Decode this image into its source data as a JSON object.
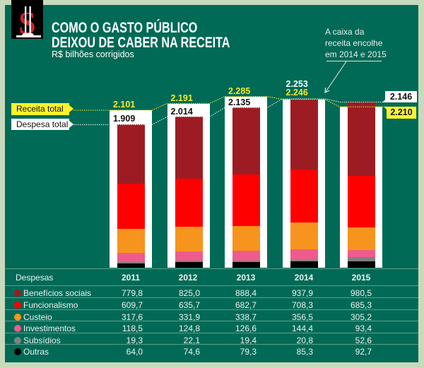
{
  "header": {
    "title_line1": "COMO O GASTO PÚBLICO",
    "title_line2": "DEIXOU DE CABER NA RECEITA",
    "subtitle": "R$ bilhões corrigidos",
    "logo_icon": "dollar-sign-icon"
  },
  "annotation": {
    "line1": "A caixa da",
    "line2": "receita encolhe",
    "line3": "em 2014 e 2015",
    "arrow_icon": "arrow-down-left-icon"
  },
  "legend": {
    "receita_label": "Receita total",
    "despesa_label": "Despesa total"
  },
  "colors": {
    "background": "#c9d9bb",
    "panel": "#006a56",
    "receita_text": "#f2ea2f",
    "receita_box": "#fff22d",
    "despesa_box": "#ffffff",
    "table_divider": "#5c9f88"
  },
  "chart_data": {
    "type": "bar",
    "stacked": true,
    "title": "COMO O GASTO PÚBLICO DEIXOU DE CABER NA RECEITA",
    "subtitle": "R$ bilhões corrigidos",
    "xlabel": "",
    "ylabel": "R$ bilhões",
    "grid": false,
    "legend_position": "left",
    "categories": [
      "2011",
      "2012",
      "2013",
      "2014",
      "2015"
    ],
    "series": [
      {
        "key": "beneficios-sociais",
        "name": "Benefícios sociais",
        "color": "#9d1c23",
        "values": [
          779.8,
          825.0,
          888.4,
          937.9,
          980.5
        ]
      },
      {
        "key": "funcionalismo",
        "name": "Funcionalismo",
        "color": "#ff0000",
        "values": [
          609.7,
          635.7,
          682.7,
          708.3,
          685.3
        ]
      },
      {
        "key": "custeio",
        "name": "Custeio",
        "color": "#f7941d",
        "values": [
          317.6,
          331.9,
          338.7,
          356.5,
          305.2
        ]
      },
      {
        "key": "investimentos",
        "name": "Investimentos",
        "color": "#ef5b8c",
        "values": [
          118.5,
          124.8,
          126.6,
          144.4,
          93.4
        ]
      },
      {
        "key": "subsidios",
        "name": "Subsídios",
        "color": "#808080",
        "values": [
          19.3,
          22.1,
          19.4,
          20.8,
          52.6
        ]
      },
      {
        "key": "outras",
        "name": "Outras",
        "color": "#000000",
        "values": [
          64.0,
          74.6,
          79.3,
          85.3,
          92.7
        ]
      }
    ],
    "receita_total": {
      "name": "Receita total",
      "values": [
        2101,
        2191,
        2285,
        2246,
        2146
      ],
      "labels": [
        "2.101",
        "2.191",
        "2.285",
        "2.246"
      ]
    },
    "despesa_total": {
      "name": "Despesa total",
      "values": [
        1909,
        2014,
        2135,
        2253,
        2210
      ],
      "labels": [
        "1.909",
        "2.014",
        "2.135",
        "2.253"
      ]
    },
    "end_labels": {
      "white_box": "2.146",
      "yellow_box": "2.210"
    },
    "annotation": "A caixa da receita encolhe em 2014 e 2015"
  },
  "table": {
    "header": "Despesas",
    "years": [
      "2011",
      "2012",
      "2013",
      "2014",
      "2015"
    ],
    "rows": [
      {
        "label": "Benefícios sociais",
        "color": "#9d1c23",
        "values": [
          "779,8",
          "825,0",
          "888,4",
          "937,9",
          "980,5"
        ]
      },
      {
        "label": "Funcionalismo",
        "color": "#ff0000",
        "values": [
          "609,7",
          "635,7",
          "682,7",
          "708,3",
          "685,3"
        ]
      },
      {
        "label": "Custeio",
        "color": "#f7941d",
        "values": [
          "317,6",
          "331,9",
          "338,7",
          "356,5",
          "305,2"
        ]
      },
      {
        "label": "Investimentos",
        "color": "#ef5b8c",
        "values": [
          "118,5",
          "124,8",
          "126,6",
          "144,4",
          "93,4"
        ]
      },
      {
        "label": "Subsídios",
        "color": "#808080",
        "values": [
          "19,3",
          "22,1",
          "19,4",
          "20,8",
          "52,6"
        ]
      },
      {
        "label": "Outras",
        "color": "#000000",
        "values": [
          "64,0",
          "74,6",
          "79,3",
          "85,3",
          "92,7"
        ]
      }
    ]
  }
}
